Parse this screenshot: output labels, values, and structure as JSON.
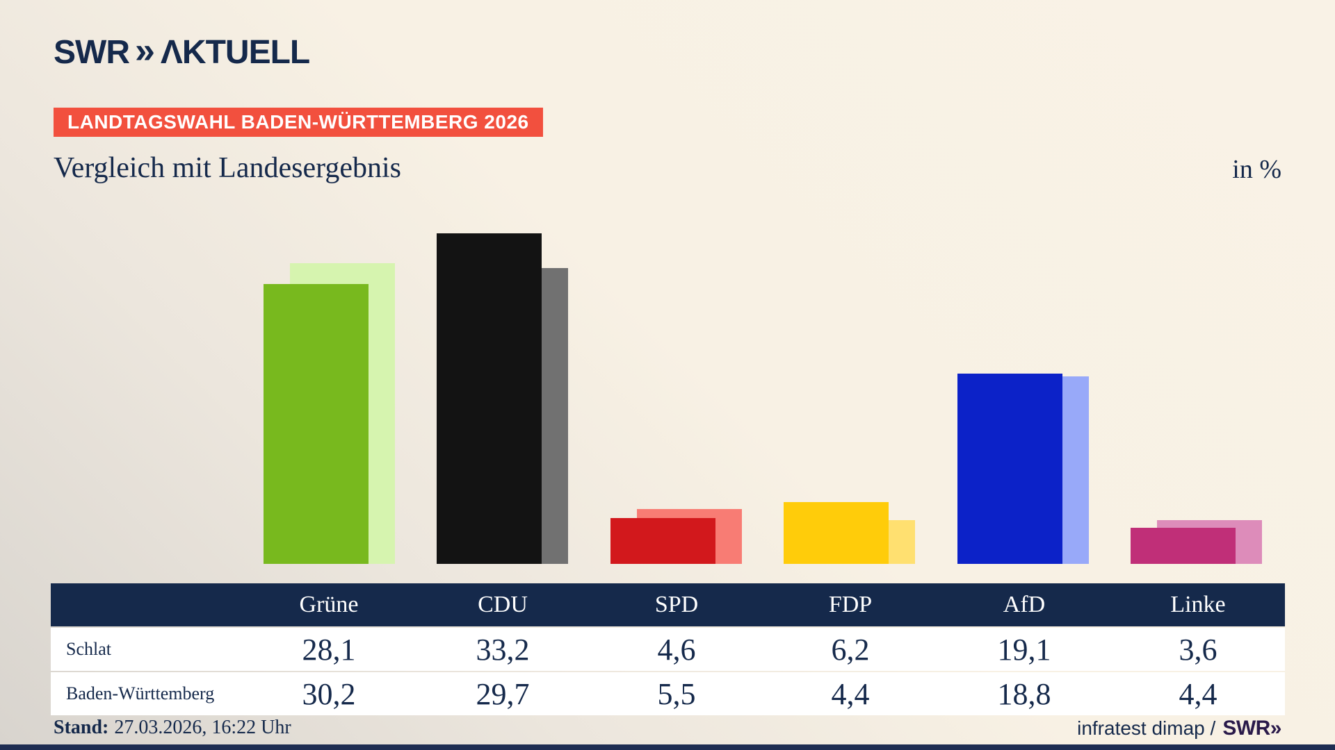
{
  "brand": {
    "logo_text": "SWR",
    "logo_chevron": "»",
    "logo_suffix": "ΛKTUELL",
    "footer_brand": "SWR»"
  },
  "badge": {
    "text": "LANDTAGSWAHL BADEN-WÜRTTEMBERG 2026"
  },
  "title": "Vergleich mit Landesergebnis",
  "unit_label": "in %",
  "footer": {
    "stand_label": "Stand:",
    "stand_value": "27.03.2026, 16:22 Uhr",
    "source_text": "infratest dimap /"
  },
  "theme": {
    "navy": "#15294b",
    "badge_bg": "#f2503e",
    "header_row_bg": "#15294b",
    "footer_brand_color": "#2a1a4a",
    "background_top": "#f9f2e6",
    "background_bottom_left": "#d8d4ce"
  },
  "chart_data": {
    "type": "bar",
    "title": "Vergleich mit Landesergebnis",
    "unit": "in %",
    "categories": [
      "Grüne",
      "CDU",
      "SPD",
      "FDP",
      "AfD",
      "Linke"
    ],
    "series": [
      {
        "name": "Schlat",
        "values": [
          28.1,
          33.2,
          4.6,
          6.2,
          19.1,
          3.6
        ]
      },
      {
        "name": "Baden-Württemberg",
        "values": [
          30.2,
          29.7,
          5.5,
          4.4,
          18.8,
          4.4
        ]
      }
    ],
    "value_labels": [
      [
        "28,1",
        "33,2",
        "4,6",
        "6,2",
        "19,1",
        "3,6"
      ],
      [
        "30,2",
        "29,7",
        "5,5",
        "4,4",
        "18,8",
        "4,4"
      ]
    ],
    "colors_front": [
      "#78b91e",
      "#131313",
      "#d2181c",
      "#ffcc0a",
      "#0c22c8",
      "#c02f78"
    ],
    "colors_back": [
      "#d6f4af",
      "#717171",
      "#f87c74",
      "#ffe070",
      "#98a9f9",
      "#dd8cba"
    ],
    "ylim": [
      0,
      35
    ],
    "grid": false,
    "legend_position": "table-rows"
  }
}
